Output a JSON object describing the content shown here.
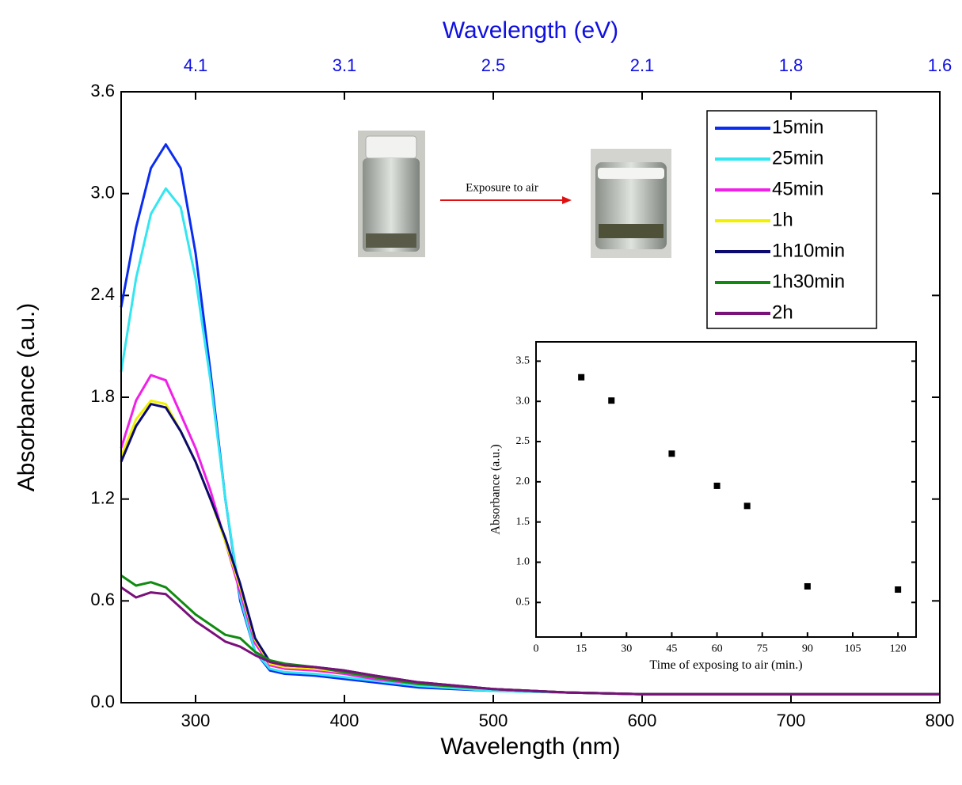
{
  "chart_data": [
    {
      "type": "line",
      "xlabel": "Wavelength (nm)",
      "ylabel": "Absorbance (a.u.)",
      "x2label": "Wavelength (eV)",
      "annotation": "Exposure to air",
      "xlim": [
        250,
        800
      ],
      "xticks": [
        300,
        400,
        500,
        600,
        700,
        800
      ],
      "x2ticks": [
        {
          "value": 300,
          "label": "4.1"
        },
        {
          "value": 400,
          "label": "3.1"
        },
        {
          "value": 500,
          "label": "2.5"
        },
        {
          "value": 600,
          "label": "2.1"
        },
        {
          "value": 700,
          "label": "1.8"
        },
        {
          "value": 800,
          "label": "1.6"
        }
      ],
      "ylim": [
        0,
        3.6
      ],
      "yticks": [
        {
          "value": 0,
          "label": "0.0"
        },
        0.6,
        1.2,
        1.8,
        2.4,
        {
          "value": 3,
          "label": "3.0"
        },
        3.6
      ],
      "x": [
        250,
        260,
        270,
        280,
        290,
        300,
        310,
        320,
        330,
        340,
        350,
        360,
        380,
        400,
        420,
        450,
        500,
        550,
        600,
        700,
        800
      ],
      "series": [
        {
          "name": "15min",
          "color": "#0a2cf0",
          "values": [
            2.33,
            2.8,
            3.15,
            3.29,
            3.15,
            2.65,
            1.95,
            1.2,
            0.6,
            0.3,
            0.19,
            0.17,
            0.16,
            0.14,
            0.12,
            0.09,
            0.07,
            0.06,
            0.05,
            0.05,
            0.05
          ]
        },
        {
          "name": "25min",
          "color": "#33e6f0",
          "values": [
            1.95,
            2.5,
            2.88,
            3.03,
            2.92,
            2.5,
            1.9,
            1.2,
            0.62,
            0.3,
            0.2,
            0.18,
            0.17,
            0.15,
            0.13,
            0.1,
            0.07,
            0.06,
            0.05,
            0.05,
            0.05
          ]
        },
        {
          "name": "45min",
          "color": "#f020e6",
          "values": [
            1.5,
            1.78,
            1.93,
            1.9,
            1.7,
            1.5,
            1.25,
            0.95,
            0.65,
            0.35,
            0.22,
            0.2,
            0.19,
            0.17,
            0.14,
            0.11,
            0.08,
            0.06,
            0.05,
            0.05,
            0.05
          ]
        },
        {
          "name": "1h",
          "color": "#f0f000",
          "values": [
            1.45,
            1.67,
            1.78,
            1.76,
            1.6,
            1.42,
            1.2,
            0.95,
            0.68,
            0.37,
            0.23,
            0.21,
            0.2,
            0.18,
            0.15,
            0.11,
            0.08,
            0.06,
            0.05,
            0.05,
            0.05
          ]
        },
        {
          "name": "1h10min",
          "color": "#0a0a70",
          "values": [
            1.42,
            1.63,
            1.76,
            1.74,
            1.6,
            1.42,
            1.2,
            0.97,
            0.7,
            0.38,
            0.24,
            0.22,
            0.21,
            0.19,
            0.16,
            0.12,
            0.08,
            0.06,
            0.05,
            0.05,
            0.05
          ]
        },
        {
          "name": "1h30min",
          "color": "#108a10",
          "values": [
            0.75,
            0.69,
            0.71,
            0.68,
            0.6,
            0.52,
            0.46,
            0.4,
            0.38,
            0.3,
            0.25,
            0.23,
            0.21,
            0.18,
            0.15,
            0.11,
            0.08,
            0.06,
            0.05,
            0.05,
            0.05
          ]
        },
        {
          "name": "2h",
          "color": "#7a107a",
          "values": [
            0.68,
            0.62,
            0.65,
            0.64,
            0.56,
            0.48,
            0.42,
            0.36,
            0.33,
            0.28,
            0.24,
            0.22,
            0.21,
            0.19,
            0.16,
            0.12,
            0.08,
            0.06,
            0.05,
            0.05,
            0.05
          ]
        }
      ]
    },
    {
      "type": "scatter",
      "xlabel": "Time of exposing to air (min.)",
      "ylabel": "Absorbance (a.u.)",
      "xlim": [
        0,
        126
      ],
      "xticks": [
        0,
        15,
        30,
        45,
        60,
        75,
        90,
        105,
        120
      ],
      "ylim": [
        0.07,
        3.74
      ],
      "yticks": [
        0.5,
        {
          "value": 1,
          "label": "1.0"
        },
        1.5,
        {
          "value": 2,
          "label": "2.0"
        },
        2.5,
        {
          "value": 3,
          "label": "3.0"
        },
        3.5
      ],
      "color": "#000000",
      "x": [
        15,
        25,
        45,
        60,
        70,
        90,
        120
      ],
      "values": [
        3.3,
        3.01,
        2.35,
        1.95,
        1.7,
        0.7,
        0.66
      ]
    }
  ]
}
